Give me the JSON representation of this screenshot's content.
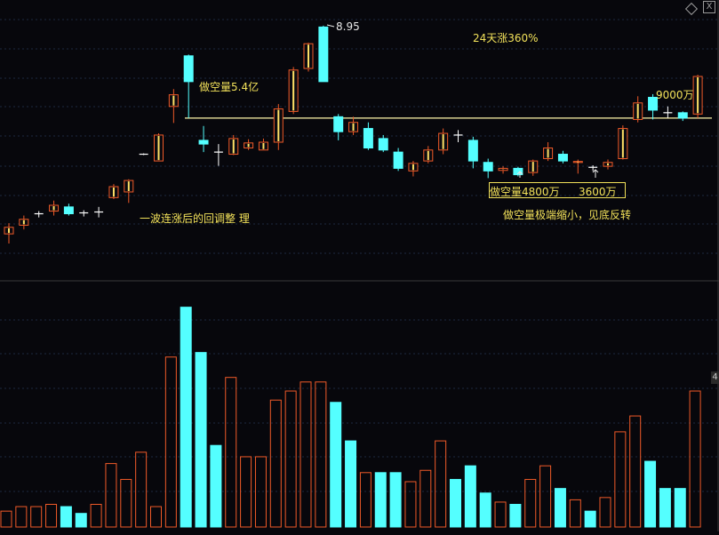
{
  "chart_data": [
    {
      "type": "candlestick",
      "title": "",
      "annotations": {
        "price_label": "8.95",
        "rise_note": "24天涨360%",
        "short_vol_a": "做空量5.4亿",
        "vol_9000": "9000万",
        "vol_4800": "做空量4800万",
        "vol_3600": "3600万",
        "pullback_note": "一波连涨后的回调整 理",
        "bottom_note": "做空量极端缩小，见底反转"
      },
      "reference_line": 2.95,
      "ylim": [
        0.6,
        9.8
      ],
      "candles": [
        {
          "o": 0.72,
          "c": 0.78,
          "h": 0.82,
          "l": 0.64,
          "t": "up"
        },
        {
          "o": 0.8,
          "c": 0.86,
          "h": 0.9,
          "l": 0.76,
          "t": "up"
        },
        {
          "o": 0.92,
          "c": 0.9,
          "h": 0.95,
          "l": 0.88,
          "t": "flat"
        },
        {
          "o": 0.95,
          "c": 1.02,
          "h": 1.08,
          "l": 0.9,
          "t": "up"
        },
        {
          "o": 1.0,
          "c": 0.92,
          "h": 1.04,
          "l": 0.9,
          "t": "down"
        },
        {
          "o": 0.93,
          "c": 0.93,
          "h": 0.96,
          "l": 0.89,
          "t": "flat"
        },
        {
          "o": 0.94,
          "c": 0.94,
          "h": 1.0,
          "l": 0.88,
          "t": "flat"
        },
        {
          "o": 1.12,
          "c": 1.28,
          "h": 1.32,
          "l": 1.1,
          "t": "up"
        },
        {
          "o": 1.2,
          "c": 1.38,
          "h": 1.4,
          "l": 1.05,
          "t": "up"
        },
        {
          "o": 1.9,
          "c": 1.9,
          "h": 1.92,
          "l": 1.88,
          "t": "flat"
        },
        {
          "o": 1.75,
          "c": 2.4,
          "h": 2.45,
          "l": 1.75,
          "t": "up"
        },
        {
          "o": 3.4,
          "c": 3.92,
          "h": 4.2,
          "l": 2.78,
          "t": "up"
        },
        {
          "o": 4.6,
          "c": 6.3,
          "h": 6.4,
          "l": 2.95,
          "t": "down"
        },
        {
          "o": 2.25,
          "c": 2.15,
          "h": 2.68,
          "l": 1.95,
          "t": "down"
        },
        {
          "o": 1.95,
          "c": 1.95,
          "h": 2.15,
          "l": 1.65,
          "t": "flat"
        },
        {
          "o": 1.9,
          "c": 2.3,
          "h": 2.4,
          "l": 1.88,
          "t": "up"
        },
        {
          "o": 2.05,
          "c": 2.18,
          "h": 2.28,
          "l": 2.0,
          "t": "up"
        },
        {
          "o": 2.0,
          "c": 2.2,
          "h": 2.3,
          "l": 2.0,
          "t": "up"
        },
        {
          "o": 2.2,
          "c": 3.3,
          "h": 3.5,
          "l": 2.0,
          "t": "up"
        },
        {
          "o": 3.2,
          "c": 5.3,
          "h": 5.5,
          "l": 3.1,
          "t": "up"
        },
        {
          "o": 5.4,
          "c": 7.3,
          "h": 7.4,
          "l": 5.2,
          "t": "up"
        },
        {
          "o": 4.6,
          "c": 8.95,
          "h": 9.1,
          "l": 4.6,
          "t": "down"
        },
        {
          "o": 2.5,
          "c": 3.0,
          "h": 3.1,
          "l": 2.25,
          "t": "down"
        },
        {
          "o": 2.5,
          "c": 2.8,
          "h": 3.0,
          "l": 2.4,
          "t": "up"
        },
        {
          "o": 2.05,
          "c": 2.6,
          "h": 2.8,
          "l": 2.0,
          "t": "down"
        },
        {
          "o": 2.0,
          "c": 2.3,
          "h": 2.4,
          "l": 1.95,
          "t": "down"
        },
        {
          "o": 1.6,
          "c": 1.95,
          "h": 2.05,
          "l": 1.55,
          "t": "down"
        },
        {
          "o": 1.55,
          "c": 1.7,
          "h": 1.75,
          "l": 1.45,
          "t": "up"
        },
        {
          "o": 1.75,
          "c": 2.0,
          "h": 2.1,
          "l": 1.7,
          "t": "up"
        },
        {
          "o": 2.0,
          "c": 2.45,
          "h": 2.6,
          "l": 1.9,
          "t": "up"
        },
        {
          "o": 2.4,
          "c": 2.4,
          "h": 2.55,
          "l": 2.2,
          "t": "flat"
        },
        {
          "o": 1.75,
          "c": 2.25,
          "h": 2.35,
          "l": 1.6,
          "t": "down"
        },
        {
          "o": 1.55,
          "c": 1.72,
          "h": 1.8,
          "l": 1.42,
          "t": "down"
        },
        {
          "o": 1.56,
          "c": 1.6,
          "h": 1.64,
          "l": 1.5,
          "t": "up"
        },
        {
          "o": 1.48,
          "c": 1.6,
          "h": 1.63,
          "l": 1.45,
          "t": "down"
        },
        {
          "o": 1.52,
          "c": 1.75,
          "h": 1.78,
          "l": 1.46,
          "t": "up"
        },
        {
          "o": 1.8,
          "c": 2.05,
          "h": 2.2,
          "l": 1.75,
          "t": "up"
        },
        {
          "o": 1.75,
          "c": 1.9,
          "h": 1.98,
          "l": 1.7,
          "t": "down"
        },
        {
          "o": 1.72,
          "c": 1.74,
          "h": 1.78,
          "l": 1.5,
          "t": "up"
        },
        {
          "o": 1.62,
          "c": 1.62,
          "h": 1.66,
          "l": 1.55,
          "t": "flat"
        },
        {
          "o": 1.64,
          "c": 1.72,
          "h": 1.78,
          "l": 1.58,
          "t": "up"
        },
        {
          "o": 1.8,
          "c": 2.6,
          "h": 2.7,
          "l": 1.78,
          "t": "up"
        },
        {
          "o": 2.9,
          "c": 3.55,
          "h": 3.85,
          "l": 2.8,
          "t": "up"
        },
        {
          "o": 3.25,
          "c": 3.8,
          "h": 3.95,
          "l": 2.9,
          "t": "down"
        },
        {
          "o": 3.15,
          "c": 3.15,
          "h": 3.4,
          "l": 2.95,
          "t": "flat"
        },
        {
          "o": 2.95,
          "c": 3.15,
          "h": 3.2,
          "l": 2.85,
          "t": "down"
        },
        {
          "o": 3.1,
          "c": 4.9,
          "h": 5.0,
          "l": 2.95,
          "t": "up"
        }
      ]
    },
    {
      "type": "bar",
      "title": "",
      "ylim": [
        0,
        100
      ],
      "volumes": [
        {
          "v": 7,
          "t": "up"
        },
        {
          "v": 9,
          "t": "up"
        },
        {
          "v": 9,
          "t": "up"
        },
        {
          "v": 10,
          "t": "up"
        },
        {
          "v": 9,
          "t": "down"
        },
        {
          "v": 6,
          "t": "down"
        },
        {
          "v": 10,
          "t": "up"
        },
        {
          "v": 28,
          "t": "up"
        },
        {
          "v": 21,
          "t": "up"
        },
        {
          "v": 33,
          "t": "up"
        },
        {
          "v": 9,
          "t": "up"
        },
        {
          "v": 75,
          "t": "up"
        },
        {
          "v": 97,
          "t": "down"
        },
        {
          "v": 77,
          "t": "down"
        },
        {
          "v": 36,
          "t": "down"
        },
        {
          "v": 66,
          "t": "up"
        },
        {
          "v": 31,
          "t": "up"
        },
        {
          "v": 31,
          "t": "up"
        },
        {
          "v": 56,
          "t": "up"
        },
        {
          "v": 60,
          "t": "up"
        },
        {
          "v": 64,
          "t": "up"
        },
        {
          "v": 64,
          "t": "up"
        },
        {
          "v": 55,
          "t": "down"
        },
        {
          "v": 38,
          "t": "down"
        },
        {
          "v": 24,
          "t": "up"
        },
        {
          "v": 24,
          "t": "down"
        },
        {
          "v": 24,
          "t": "down"
        },
        {
          "v": 20,
          "t": "up"
        },
        {
          "v": 25,
          "t": "up"
        },
        {
          "v": 38,
          "t": "up"
        },
        {
          "v": 21,
          "t": "down"
        },
        {
          "v": 27,
          "t": "down"
        },
        {
          "v": 15,
          "t": "down"
        },
        {
          "v": 11,
          "t": "up"
        },
        {
          "v": 10,
          "t": "down"
        },
        {
          "v": 21,
          "t": "up"
        },
        {
          "v": 27,
          "t": "up"
        },
        {
          "v": 17,
          "t": "down"
        },
        {
          "v": 12,
          "t": "up"
        },
        {
          "v": 7,
          "t": "down"
        },
        {
          "v": 13,
          "t": "up"
        },
        {
          "v": 42,
          "t": "up"
        },
        {
          "v": 49,
          "t": "up"
        },
        {
          "v": 29,
          "t": "down"
        },
        {
          "v": 17,
          "t": "down"
        },
        {
          "v": 17,
          "t": "down"
        },
        {
          "v": 60,
          "t": "up"
        }
      ]
    }
  ],
  "window": {
    "close_glyph": "X",
    "side_badge": "4"
  },
  "colors": {
    "up": "#f05a28",
    "up_fill": "#ffe066",
    "down": "#54ffff",
    "flat": "#ffffff",
    "annotation": "#f2e15a",
    "grid": "#1e2a40",
    "axis": "#3a3a3a"
  }
}
